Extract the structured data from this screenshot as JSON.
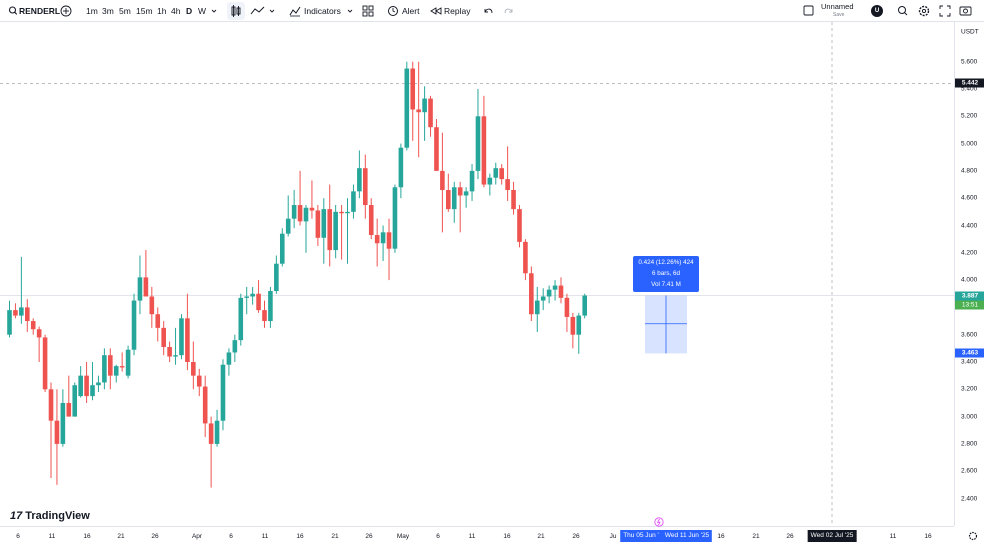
{
  "toolbar": {
    "symbol": "RENDERL",
    "timeframes": [
      "1m",
      "3m",
      "5m",
      "15m",
      "1h",
      "4h",
      "D",
      "W"
    ],
    "active_timeframe": "D",
    "indicators_label": "Indicators",
    "alert_label": "Alert",
    "replay_label": "Replay",
    "layout_name": "Unnamed",
    "layout_save": "Save",
    "avatar_letter": "U"
  },
  "price_axis": {
    "currency": "USDT",
    "ticks": [
      "5.600",
      "5.400",
      "5.200",
      "5.000",
      "4.800",
      "4.600",
      "4.400",
      "4.200",
      "4.000",
      "3.800",
      "3.600",
      "3.400",
      "3.200",
      "3.000",
      "2.800",
      "2.600",
      "2.400"
    ],
    "crosshair_price": "5.442",
    "last_price": "3.887",
    "countdown": "13:51",
    "range_low": "3.463"
  },
  "time_axis": {
    "labels": [
      "6",
      "11",
      "16",
      "21",
      "26",
      "Apr",
      "6",
      "11",
      "16",
      "21",
      "26",
      "May",
      "6",
      "11",
      "16",
      "21",
      "26",
      "Ju",
      "16",
      "21",
      "26",
      "11",
      "16"
    ],
    "range_start": "Thu 05 Jun '",
    "range_end": "Wed 11 Jun '25",
    "crosshair_date": "Wed 02 Jul '25"
  },
  "measure": {
    "line1": "0.424 (12.26%) 424",
    "line2": "6 bars, 6d",
    "line3": "Vol 7.41 M"
  },
  "logo_text": "TradingView",
  "colors": {
    "up": "#26a69a",
    "down": "#ef5350",
    "accent": "#2962ff"
  },
  "chart_data": {
    "type": "candlestick",
    "ylim": [
      2.3,
      5.75
    ],
    "candles": [
      {
        "o": 3.6,
        "h": 3.85,
        "l": 3.58,
        "c": 3.78
      },
      {
        "o": 3.78,
        "h": 3.83,
        "l": 3.72,
        "c": 3.74
      },
      {
        "o": 3.74,
        "h": 4.17,
        "l": 3.68,
        "c": 3.8
      },
      {
        "o": 3.8,
        "h": 3.86,
        "l": 3.62,
        "c": 3.7
      },
      {
        "o": 3.7,
        "h": 3.72,
        "l": 3.6,
        "c": 3.64
      },
      {
        "o": 3.64,
        "h": 3.66,
        "l": 3.4,
        "c": 3.58
      },
      {
        "o": 3.58,
        "h": 3.6,
        "l": 3.18,
        "c": 3.2
      },
      {
        "o": 3.2,
        "h": 3.25,
        "l": 2.55,
        "c": 2.97
      },
      {
        "o": 2.97,
        "h": 3.2,
        "l": 2.5,
        "c": 2.8
      },
      {
        "o": 2.8,
        "h": 3.2,
        "l": 2.78,
        "c": 3.1
      },
      {
        "o": 3.1,
        "h": 3.3,
        "l": 3.0,
        "c": 3.0
      },
      {
        "o": 3.0,
        "h": 3.25,
        "l": 3.0,
        "c": 3.23
      },
      {
        "o": 3.15,
        "h": 3.37,
        "l": 3.14,
        "c": 3.3
      },
      {
        "o": 3.3,
        "h": 3.4,
        "l": 3.1,
        "c": 3.15
      },
      {
        "o": 3.15,
        "h": 3.4,
        "l": 3.12,
        "c": 3.23
      },
      {
        "o": 3.23,
        "h": 3.3,
        "l": 3.18,
        "c": 3.25
      },
      {
        "o": 3.25,
        "h": 3.5,
        "l": 3.2,
        "c": 3.45
      },
      {
        "o": 3.45,
        "h": 3.5,
        "l": 3.2,
        "c": 3.3
      },
      {
        "o": 3.3,
        "h": 3.38,
        "l": 3.25,
        "c": 3.37
      },
      {
        "o": 3.37,
        "h": 3.47,
        "l": 3.33,
        "c": 3.36
      },
      {
        "o": 3.3,
        "h": 3.52,
        "l": 3.28,
        "c": 3.49
      },
      {
        "o": 3.49,
        "h": 3.9,
        "l": 3.45,
        "c": 3.85
      },
      {
        "o": 3.85,
        "h": 4.18,
        "l": 3.75,
        "c": 4.02
      },
      {
        "o": 4.02,
        "h": 4.22,
        "l": 3.9,
        "c": 3.88
      },
      {
        "o": 3.88,
        "h": 3.95,
        "l": 3.65,
        "c": 3.75
      },
      {
        "o": 3.75,
        "h": 3.8,
        "l": 3.55,
        "c": 3.65
      },
      {
        "o": 3.65,
        "h": 3.7,
        "l": 3.45,
        "c": 3.51
      },
      {
        "o": 3.51,
        "h": 3.55,
        "l": 3.4,
        "c": 3.44
      },
      {
        "o": 3.44,
        "h": 3.65,
        "l": 3.38,
        "c": 3.45
      },
      {
        "o": 3.45,
        "h": 3.75,
        "l": 3.42,
        "c": 3.72
      },
      {
        "o": 3.72,
        "h": 3.9,
        "l": 3.34,
        "c": 3.4
      },
      {
        "o": 3.4,
        "h": 3.55,
        "l": 3.2,
        "c": 3.3
      },
      {
        "o": 3.3,
        "h": 3.35,
        "l": 3.15,
        "c": 3.22
      },
      {
        "o": 3.22,
        "h": 3.3,
        "l": 2.85,
        "c": 2.95
      },
      {
        "o": 2.95,
        "h": 3.0,
        "l": 2.48,
        "c": 2.8
      },
      {
        "o": 2.8,
        "h": 3.05,
        "l": 2.78,
        "c": 2.97
      },
      {
        "o": 2.97,
        "h": 3.42,
        "l": 2.9,
        "c": 3.38
      },
      {
        "o": 3.38,
        "h": 3.5,
        "l": 3.3,
        "c": 3.47
      },
      {
        "o": 3.47,
        "h": 3.6,
        "l": 3.4,
        "c": 3.56
      },
      {
        "o": 3.56,
        "h": 3.9,
        "l": 3.52,
        "c": 3.87
      },
      {
        "o": 3.87,
        "h": 3.95,
        "l": 3.75,
        "c": 3.88
      },
      {
        "o": 3.88,
        "h": 3.95,
        "l": 3.82,
        "c": 3.9
      },
      {
        "o": 3.9,
        "h": 4.0,
        "l": 3.76,
        "c": 3.78
      },
      {
        "o": 3.78,
        "h": 3.85,
        "l": 3.65,
        "c": 3.7
      },
      {
        "o": 3.7,
        "h": 3.95,
        "l": 3.65,
        "c": 3.92
      },
      {
        "o": 3.92,
        "h": 4.18,
        "l": 3.9,
        "c": 4.12
      },
      {
        "o": 4.12,
        "h": 4.38,
        "l": 4.1,
        "c": 4.34
      },
      {
        "o": 4.34,
        "h": 4.62,
        "l": 4.32,
        "c": 4.45
      },
      {
        "o": 4.45,
        "h": 4.66,
        "l": 4.38,
        "c": 4.55
      },
      {
        "o": 4.55,
        "h": 4.8,
        "l": 4.4,
        "c": 4.43
      },
      {
        "o": 4.43,
        "h": 4.55,
        "l": 4.2,
        "c": 4.53
      },
      {
        "o": 4.53,
        "h": 4.73,
        "l": 4.45,
        "c": 4.51
      },
      {
        "o": 4.51,
        "h": 4.55,
        "l": 4.25,
        "c": 4.31
      },
      {
        "o": 4.31,
        "h": 4.6,
        "l": 4.12,
        "c": 4.52
      },
      {
        "o": 4.52,
        "h": 4.7,
        "l": 4.1,
        "c": 4.22
      },
      {
        "o": 4.22,
        "h": 4.55,
        "l": 4.16,
        "c": 4.5
      },
      {
        "o": 4.5,
        "h": 4.55,
        "l": 4.15,
        "c": 4.49
      },
      {
        "o": 4.49,
        "h": 4.6,
        "l": 4.12,
        "c": 4.5
      },
      {
        "o": 4.5,
        "h": 4.7,
        "l": 4.45,
        "c": 4.65
      },
      {
        "o": 4.65,
        "h": 4.95,
        "l": 4.6,
        "c": 4.82
      },
      {
        "o": 4.82,
        "h": 4.92,
        "l": 4.45,
        "c": 4.55
      },
      {
        "o": 4.55,
        "h": 4.6,
        "l": 4.3,
        "c": 4.33
      },
      {
        "o": 4.33,
        "h": 4.45,
        "l": 4.1,
        "c": 4.27
      },
      {
        "o": 4.27,
        "h": 4.4,
        "l": 4.14,
        "c": 4.35
      },
      {
        "o": 4.35,
        "h": 4.45,
        "l": 4.0,
        "c": 4.23
      },
      {
        "o": 4.23,
        "h": 4.7,
        "l": 4.2,
        "c": 4.68
      },
      {
        "o": 4.68,
        "h": 5.0,
        "l": 4.6,
        "c": 4.97
      },
      {
        "o": 4.97,
        "h": 5.6,
        "l": 4.95,
        "c": 5.55
      },
      {
        "o": 5.55,
        "h": 5.6,
        "l": 5.02,
        "c": 5.25
      },
      {
        "o": 5.25,
        "h": 5.6,
        "l": 4.9,
        "c": 5.23
      },
      {
        "o": 5.23,
        "h": 5.42,
        "l": 5.02,
        "c": 5.33
      },
      {
        "o": 5.33,
        "h": 5.35,
        "l": 5.05,
        "c": 5.12
      },
      {
        "o": 5.12,
        "h": 5.18,
        "l": 4.82,
        "c": 4.8
      },
      {
        "o": 4.8,
        "h": 5.08,
        "l": 4.35,
        "c": 4.66
      },
      {
        "o": 4.66,
        "h": 4.78,
        "l": 4.5,
        "c": 4.52
      },
      {
        "o": 4.52,
        "h": 4.72,
        "l": 4.42,
        "c": 4.68
      },
      {
        "o": 4.68,
        "h": 4.72,
        "l": 4.35,
        "c": 4.62
      },
      {
        "o": 4.62,
        "h": 4.68,
        "l": 4.53,
        "c": 4.65
      },
      {
        "o": 4.65,
        "h": 4.85,
        "l": 4.58,
        "c": 4.8
      },
      {
        "o": 4.8,
        "h": 5.4,
        "l": 4.74,
        "c": 5.2
      },
      {
        "o": 5.2,
        "h": 5.35,
        "l": 4.68,
        "c": 4.7
      },
      {
        "o": 4.7,
        "h": 4.78,
        "l": 4.62,
        "c": 4.75
      },
      {
        "o": 4.75,
        "h": 4.86,
        "l": 4.7,
        "c": 4.82
      },
      {
        "o": 4.82,
        "h": 4.85,
        "l": 4.7,
        "c": 4.74
      },
      {
        "o": 4.74,
        "h": 4.98,
        "l": 4.58,
        "c": 4.66
      },
      {
        "o": 4.66,
        "h": 4.72,
        "l": 4.48,
        "c": 4.52
      },
      {
        "o": 4.52,
        "h": 4.55,
        "l": 4.24,
        "c": 4.28
      },
      {
        "o": 4.28,
        "h": 4.3,
        "l": 4.0,
        "c": 4.05
      },
      {
        "o": 4.05,
        "h": 4.1,
        "l": 3.7,
        "c": 3.75
      },
      {
        "o": 3.75,
        "h": 3.95,
        "l": 3.62,
        "c": 3.85
      },
      {
        "o": 3.85,
        "h": 3.94,
        "l": 3.78,
        "c": 3.88
      },
      {
        "o": 3.88,
        "h": 3.96,
        "l": 3.83,
        "c": 3.93
      },
      {
        "o": 3.93,
        "h": 4.0,
        "l": 3.85,
        "c": 3.96
      },
      {
        "o": 3.96,
        "h": 4.02,
        "l": 3.83,
        "c": 3.87
      },
      {
        "o": 3.87,
        "h": 3.9,
        "l": 3.62,
        "c": 3.73
      },
      {
        "o": 3.73,
        "h": 3.76,
        "l": 3.5,
        "c": 3.6
      },
      {
        "o": 3.6,
        "h": 3.76,
        "l": 3.46,
        "c": 3.74
      },
      {
        "o": 3.74,
        "h": 3.9,
        "l": 3.72,
        "c": 3.887
      }
    ]
  }
}
